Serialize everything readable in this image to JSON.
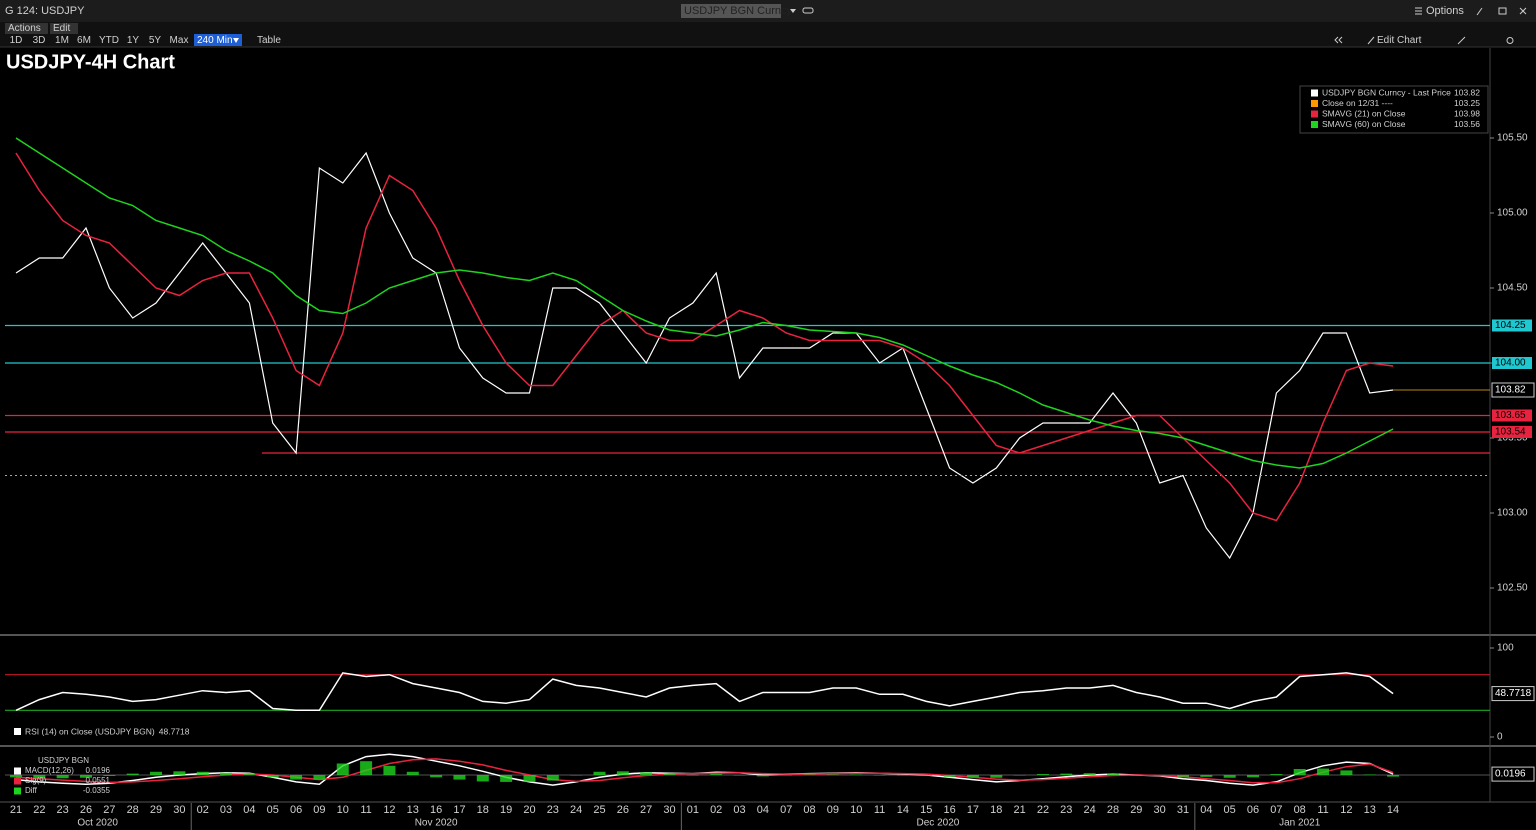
{
  "window": {
    "title": "G 124: USDJPY",
    "security": "USDJPY BGN Curncy",
    "options": "Options"
  },
  "toolbar": {
    "actions": "Actions",
    "edit": "Edit",
    "periods": [
      "1D",
      "3D",
      "1M",
      "6M",
      "YTD",
      "1Y",
      "5Y",
      "Max"
    ],
    "interval": "240 Min",
    "table": "Table",
    "edit_chart": "Edit Chart"
  },
  "chart_data": [
    {
      "type": "line",
      "title": "USDJPY-4H Chart",
      "categories": [
        "21",
        "22",
        "23",
        "26",
        "27",
        "28",
        "29",
        "30",
        "02",
        "03",
        "04",
        "05",
        "06",
        "09",
        "10",
        "11",
        "12",
        "13",
        "16",
        "17",
        "18",
        "19",
        "20",
        "23",
        "24",
        "25",
        "26",
        "27",
        "30",
        "01",
        "02",
        "03",
        "04",
        "07",
        "08",
        "09",
        "10",
        "11",
        "14",
        "15",
        "16",
        "17",
        "18",
        "21",
        "22",
        "23",
        "24",
        "28",
        "29",
        "30",
        "31",
        "04",
        "05",
        "06",
        "07",
        "08",
        "11",
        "12",
        "13",
        "14"
      ],
      "months": [
        "Oct 2020",
        "Nov 2020",
        "Dec 2020",
        "Jan 2021"
      ],
      "series": [
        {
          "name": "USDJPY BGN Curncy - Last Price",
          "color": "#ffffff",
          "axis_label": true,
          "values": [
            104.6,
            104.7,
            104.7,
            104.9,
            104.5,
            104.3,
            104.4,
            104.6,
            104.8,
            104.6,
            104.4,
            103.6,
            103.4,
            105.3,
            105.2,
            105.4,
            105.0,
            104.7,
            104.6,
            104.1,
            103.9,
            103.8,
            103.8,
            104.5,
            104.5,
            104.4,
            104.2,
            104.0,
            104.3,
            104.4,
            104.6,
            103.9,
            104.1,
            104.1,
            104.1,
            104.2,
            104.2,
            104.0,
            104.1,
            103.7,
            103.3,
            103.2,
            103.3,
            103.5,
            103.6,
            103.6,
            103.6,
            103.8,
            103.6,
            103.2,
            103.25,
            102.9,
            102.7,
            103.0,
            103.8,
            103.95,
            104.2,
            104.2,
            103.8,
            103.82
          ]
        },
        {
          "name": "Close on 12/31 ----",
          "color": "#ff9900",
          "level": 103.25
        },
        {
          "name": "SMAVG (21)  on Close",
          "color": "#e8233f",
          "values": [
            105.4,
            105.15,
            104.95,
            104.85,
            104.8,
            104.65,
            104.5,
            104.45,
            104.55,
            104.6,
            104.6,
            104.3,
            103.95,
            103.85,
            104.2,
            104.9,
            105.25,
            105.15,
            104.9,
            104.55,
            104.25,
            104.0,
            103.85,
            103.85,
            104.05,
            104.25,
            104.35,
            104.2,
            104.15,
            104.15,
            104.25,
            104.35,
            104.3,
            104.2,
            104.15,
            104.15,
            104.15,
            104.15,
            104.1,
            104.0,
            103.85,
            103.65,
            103.45,
            103.4,
            103.45,
            103.5,
            103.55,
            103.6,
            103.65,
            103.65,
            103.5,
            103.35,
            103.2,
            103.0,
            102.95,
            103.2,
            103.6,
            103.95,
            104.0,
            103.98
          ]
        },
        {
          "name": "SMAVG (60)  on Close",
          "color": "#1ed41e",
          "values": [
            105.5,
            105.4,
            105.3,
            105.2,
            105.1,
            105.05,
            104.95,
            104.9,
            104.85,
            104.75,
            104.68,
            104.6,
            104.45,
            104.35,
            104.33,
            104.4,
            104.5,
            104.55,
            104.6,
            104.62,
            104.6,
            104.57,
            104.55,
            104.6,
            104.55,
            104.45,
            104.35,
            104.28,
            104.22,
            104.2,
            104.18,
            104.22,
            104.27,
            104.25,
            104.22,
            104.21,
            104.2,
            104.17,
            104.12,
            104.05,
            103.98,
            103.92,
            103.87,
            103.8,
            103.72,
            103.67,
            103.62,
            103.58,
            103.55,
            103.53,
            103.5,
            103.45,
            103.4,
            103.35,
            103.32,
            103.3,
            103.33,
            103.4,
            103.48,
            103.56
          ]
        }
      ],
      "levels": [
        {
          "value": 104.25,
          "color": "#1fc8d0"
        },
        {
          "value": 104,
          "label": "104.00",
          "color": "#1fc8d0"
        },
        {
          "value": 103.65,
          "color": "#e8233f"
        },
        {
          "value": 103.54,
          "color": "#e8233f"
        },
        {
          "value": 103.4,
          "color": "#e8233f",
          "show_label": false
        }
      ],
      "ylim": [
        102.2,
        106.1
      ],
      "yticks": [
        {
          "value": 102.5,
          "label": "102.50"
        },
        {
          "value": 103,
          "label": "103.00"
        },
        {
          "value": 103.5,
          "label": "103.50"
        },
        {
          "value": 104,
          "label": "104.00"
        },
        {
          "value": 104.5,
          "label": "104.50"
        },
        {
          "value": 105,
          "label": "105.00"
        },
        {
          "value": 105.5,
          "label": "105.50"
        }
      ]
    },
    {
      "type": "line",
      "series": [
        {
          "name": "RSI (14)  on Close (USDJPY BGN)",
          "color": "#ffffff",
          "axis_label": true,
          "values": [
            30,
            42,
            50,
            48,
            45,
            40,
            42,
            47,
            52,
            50,
            52,
            32,
            30,
            30,
            72,
            68,
            70,
            60,
            55,
            50,
            40,
            38,
            42,
            65,
            58,
            55,
            50,
            45,
            55,
            58,
            60,
            40,
            50,
            50,
            50,
            55,
            55,
            48,
            48,
            40,
            35,
            40,
            45,
            50,
            52,
            55,
            55,
            58,
            50,
            45,
            38,
            38,
            32,
            40,
            45,
            68,
            70,
            72,
            68,
            48.7718
          ]
        }
      ],
      "levels": [
        {
          "value": 70,
          "color": "#c0192c",
          "show_label": false
        },
        {
          "value": 30,
          "color": "#1ea81e",
          "show_label": false
        }
      ],
      "ylim": [
        0,
        100
      ],
      "yticks": [
        0,
        100
      ]
    },
    {
      "type": "line",
      "title": "USDJPY BGN",
      "series": [
        {
          "name": "MACD(12,26)",
          "color": "#ffffff",
          "axis_label": true,
          "values": [
            -0.1,
            -0.15,
            -0.18,
            -0.2,
            -0.18,
            -0.12,
            -0.05,
            0.0,
            0.03,
            0.05,
            0.04,
            -0.05,
            -0.15,
            -0.2,
            0.2,
            0.4,
            0.45,
            0.4,
            0.3,
            0.2,
            0.08,
            -0.05,
            -0.15,
            -0.22,
            -0.15,
            -0.05,
            0.02,
            0.05,
            0.04,
            0.03,
            0.06,
            0.05,
            0.0,
            0.02,
            0.03,
            0.04,
            0.05,
            0.04,
            0.02,
            0.0,
            -0.05,
            -0.1,
            -0.15,
            -0.12,
            -0.08,
            -0.04,
            0.0,
            0.02,
            0.0,
            -0.02,
            -0.08,
            -0.12,
            -0.18,
            -0.22,
            -0.15,
            0.05,
            0.2,
            0.28,
            0.25,
            0.0196
          ]
        },
        {
          "name": "Sig(9)",
          "color": "#e8233f",
          "values": [
            -0.05,
            -0.08,
            -0.11,
            -0.14,
            -0.16,
            -0.15,
            -0.12,
            -0.08,
            -0.04,
            0.0,
            0.02,
            0.0,
            -0.05,
            -0.1,
            -0.05,
            0.1,
            0.25,
            0.33,
            0.35,
            0.3,
            0.22,
            0.1,
            0.0,
            -0.1,
            -0.14,
            -0.12,
            -0.06,
            -0.01,
            0.02,
            0.03,
            0.04,
            0.05,
            0.03,
            0.02,
            0.02,
            0.03,
            0.04,
            0.04,
            0.03,
            0.02,
            -0.01,
            -0.05,
            -0.09,
            -0.11,
            -0.1,
            -0.07,
            -0.04,
            -0.01,
            0.0,
            -0.01,
            -0.04,
            -0.08,
            -0.12,
            -0.17,
            -0.17,
            -0.08,
            0.06,
            0.18,
            0.24,
            0.0551
          ]
        },
        {
          "name": "Diff",
          "color": "#1ed41e",
          "type": "bar",
          "values": [
            -0.05,
            -0.07,
            -0.07,
            -0.06,
            -0.02,
            0.03,
            0.07,
            0.08,
            0.07,
            0.05,
            0.02,
            -0.05,
            -0.1,
            -0.1,
            0.25,
            0.3,
            0.2,
            0.07,
            -0.05,
            -0.1,
            -0.14,
            -0.15,
            -0.15,
            -0.12,
            -0.01,
            0.07,
            0.08,
            0.06,
            0.02,
            0,
            0.02,
            0,
            -0.03,
            0,
            0.01,
            0.01,
            0.01,
            0,
            -0.01,
            -0.02,
            -0.04,
            -0.05,
            -0.06,
            -0.01,
            0.02,
            0.03,
            0.04,
            0.03,
            0,
            -0.01,
            -0.04,
            -0.04,
            -0.06,
            -0.05,
            0.02,
            0.13,
            0.14,
            0.1,
            0.01,
            -0.0355
          ]
        }
      ],
      "ylim": [
        -0.5,
        0.5
      ]
    }
  ]
}
